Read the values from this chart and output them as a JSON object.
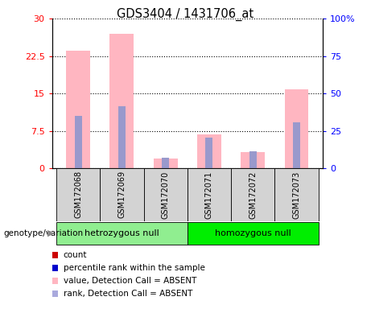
{
  "title": "GDS3404 / 1431706_at",
  "samples": [
    "GSM172068",
    "GSM172069",
    "GSM172070",
    "GSM172071",
    "GSM172072",
    "GSM172073"
  ],
  "pink_values": [
    23.5,
    27.0,
    2.0,
    6.8,
    3.2,
    15.8
  ],
  "blue_values": [
    10.5,
    12.5,
    2.2,
    6.2,
    3.5,
    9.2
  ],
  "left_ylim": [
    0,
    30
  ],
  "left_yticks": [
    0,
    7.5,
    15,
    22.5,
    30
  ],
  "right_ylim": [
    0,
    100
  ],
  "right_yticks": [
    0,
    25,
    50,
    75,
    100
  ],
  "right_yticklabels": [
    "0",
    "25",
    "50",
    "75",
    "100%"
  ],
  "bar_width": 0.55,
  "pink_color": "#FFB6C1",
  "blue_color": "#9999CC",
  "background_label": "#D3D3D3",
  "group1_name": "hetrozygous null",
  "group2_name": "homozygous null",
  "group1_color": "#90EE90",
  "group2_color": "#00EE00",
  "genotype_label": "genotype/variation",
  "legend_items": [
    {
      "label": "count",
      "color": "#CC0000"
    },
    {
      "label": "percentile rank within the sample",
      "color": "#0000CC"
    },
    {
      "label": "value, Detection Call = ABSENT",
      "color": "#FFB6C1"
    },
    {
      "label": "rank, Detection Call = ABSENT",
      "color": "#AAAADD"
    }
  ]
}
